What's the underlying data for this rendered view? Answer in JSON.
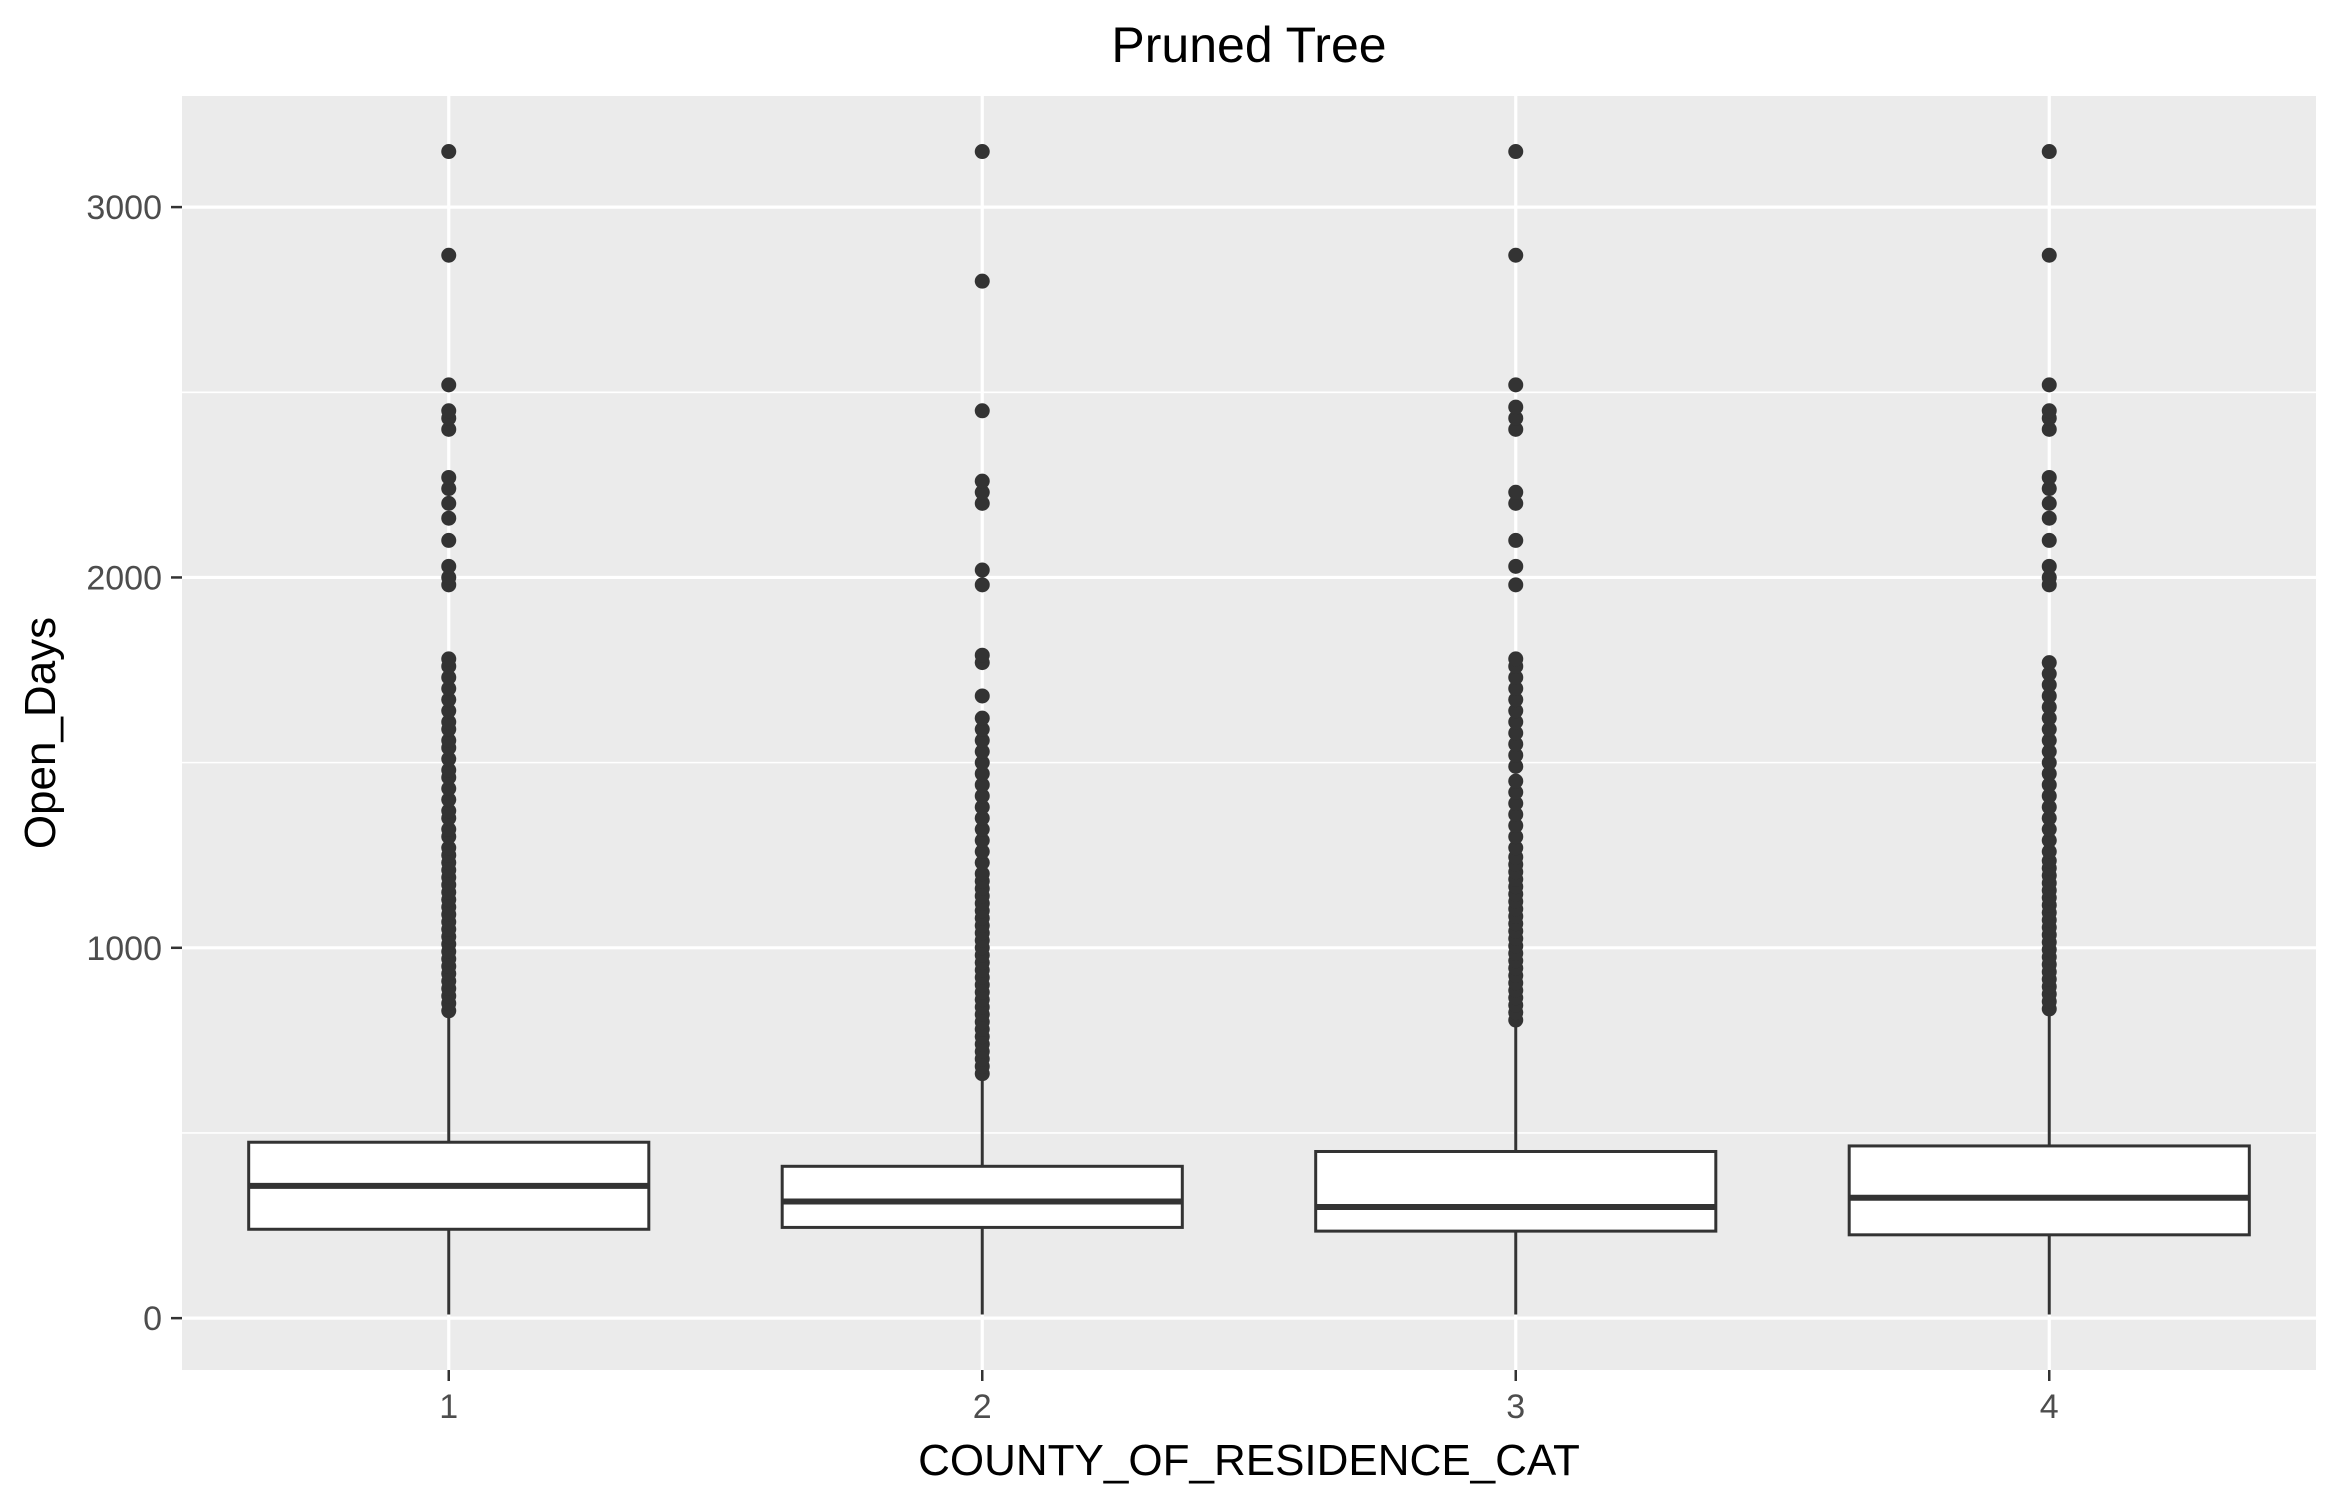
{
  "chart_data": {
    "type": "box",
    "title": "Pruned Tree",
    "xlabel": "COUNTY_OF_RESIDENCE_CAT",
    "ylabel": "Open_Days",
    "categories": [
      "1",
      "2",
      "3",
      "4"
    ],
    "ylim": [
      -140,
      3300
    ],
    "yticks": [
      0,
      1000,
      2000,
      3000
    ],
    "ytick_labels": [
      "0",
      "1000",
      "2000",
      "3000"
    ],
    "grid": true,
    "colors": {
      "panel": "#ebebeb",
      "grid": "#ffffff",
      "box_fill": "#ffffff",
      "box_line": "#333333",
      "outlier": "#333333",
      "tick_label": "#4d4d4d"
    },
    "boxes": [
      {
        "category": "1",
        "q1": 240,
        "median": 357,
        "q3": 475,
        "whisker_low": 10,
        "whisker_high": 825,
        "outliers": [
          830,
          850,
          870,
          890,
          910,
          930,
          950,
          970,
          990,
          1010,
          1030,
          1050,
          1070,
          1090,
          1110,
          1130,
          1150,
          1170,
          1190,
          1210,
          1230,
          1250,
          1270,
          1300,
          1320,
          1350,
          1370,
          1400,
          1430,
          1460,
          1480,
          1510,
          1540,
          1560,
          1590,
          1610,
          1640,
          1670,
          1700,
          1730,
          1760,
          1780,
          1980,
          2000,
          2030,
          2100,
          2160,
          2200,
          2240,
          2270,
          2400,
          2430,
          2450,
          2520,
          2870,
          3150
        ]
      },
      {
        "category": "2",
        "q1": 245,
        "median": 315,
        "q3": 410,
        "whisker_low": 10,
        "whisker_high": 655,
        "outliers": [
          660,
          680,
          700,
          720,
          740,
          760,
          780,
          800,
          820,
          840,
          860,
          880,
          900,
          920,
          940,
          960,
          980,
          1000,
          1020,
          1040,
          1060,
          1080,
          1100,
          1120,
          1140,
          1160,
          1180,
          1200,
          1230,
          1260,
          1290,
          1320,
          1350,
          1380,
          1410,
          1440,
          1470,
          1500,
          1530,
          1560,
          1590,
          1620,
          1680,
          1770,
          1790,
          1980,
          2020,
          2200,
          2230,
          2260,
          2450,
          2800,
          3150
        ]
      },
      {
        "category": "3",
        "q1": 235,
        "median": 300,
        "q3": 450,
        "whisker_low": 10,
        "whisker_high": 800,
        "outliers": [
          805,
          825,
          845,
          865,
          885,
          905,
          925,
          945,
          965,
          985,
          1005,
          1025,
          1045,
          1065,
          1085,
          1105,
          1125,
          1145,
          1165,
          1185,
          1205,
          1225,
          1245,
          1270,
          1300,
          1330,
          1360,
          1390,
          1420,
          1450,
          1490,
          1520,
          1550,
          1580,
          1610,
          1640,
          1670,
          1700,
          1730,
          1760,
          1780,
          1980,
          2030,
          2100,
          2200,
          2230,
          2400,
          2430,
          2460,
          2520,
          2870,
          3150
        ]
      },
      {
        "category": "4",
        "q1": 225,
        "median": 325,
        "q3": 465,
        "whisker_low": 10,
        "whisker_high": 830,
        "outliers": [
          835,
          855,
          875,
          895,
          915,
          935,
          955,
          975,
          995,
          1015,
          1035,
          1055,
          1075,
          1095,
          1115,
          1135,
          1155,
          1175,
          1195,
          1215,
          1235,
          1260,
          1290,
          1320,
          1350,
          1380,
          1410,
          1440,
          1470,
          1500,
          1530,
          1560,
          1590,
          1620,
          1650,
          1680,
          1710,
          1740,
          1770,
          1980,
          2000,
          2030,
          2100,
          2160,
          2200,
          2240,
          2270,
          2400,
          2430,
          2450,
          2520,
          2870,
          3150
        ]
      }
    ]
  }
}
